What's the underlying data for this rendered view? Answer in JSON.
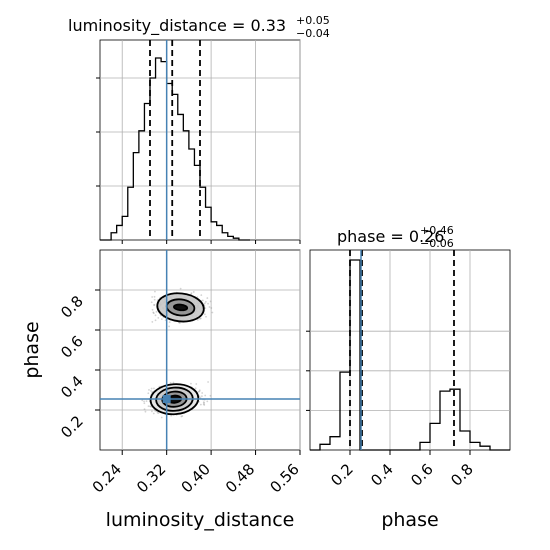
{
  "chart_data": {
    "type": "corner",
    "parameters": [
      "luminosity_distance",
      "phase"
    ],
    "axis_labels": {
      "x1": "luminosity_distance",
      "x2": "phase",
      "y2": "phase"
    },
    "titles": {
      "luminosity_distance": {
        "prefix": "luminosity_distance = 0.33",
        "plus": "+0.05",
        "minus": "−0.04"
      },
      "phase": {
        "prefix": "phase = 0.26",
        "plus": "+0.46",
        "minus": "−0.06"
      }
    },
    "ticks": {
      "luminosity_distance": [
        "0.24",
        "0.32",
        "0.40",
        "0.48",
        "0.56"
      ],
      "phase": [
        "0.2",
        "0.4",
        "0.6",
        "0.8"
      ]
    },
    "ranges": {
      "luminosity_distance": [
        0.2,
        0.56
      ],
      "phase": [
        0.0,
        1.0
      ]
    },
    "truth": {
      "luminosity_distance": 0.32,
      "phase": 0.255,
      "color": "#4682b4"
    },
    "quantiles": {
      "luminosity_distance": [
        0.29,
        0.33,
        0.38
      ],
      "phase": [
        0.2,
        0.26,
        0.72
      ]
    },
    "hist_luminosity_distance": {
      "bin_edges": [
        0.2,
        0.22,
        0.23,
        0.24,
        0.25,
        0.26,
        0.27,
        0.28,
        0.29,
        0.3,
        0.31,
        0.32,
        0.33,
        0.34,
        0.35,
        0.36,
        0.37,
        0.38,
        0.39,
        0.4,
        0.41,
        0.42,
        0.43,
        0.44,
        0.45,
        0.46,
        0.47
      ],
      "heights": [
        0,
        4,
        8,
        13,
        29,
        48,
        60,
        75,
        89,
        100,
        98,
        86,
        80,
        69,
        60,
        50,
        41,
        29,
        18,
        10,
        8,
        4,
        2,
        1,
        0,
        0
      ]
    },
    "hist_phase": {
      "bin_edges": [
        0.0,
        0.05,
        0.1,
        0.15,
        0.2,
        0.25,
        0.3,
        0.35,
        0.4,
        0.45,
        0.5,
        0.55,
        0.6,
        0.65,
        0.7,
        0.75,
        0.8,
        0.85,
        0.9,
        0.95,
        1.0
      ],
      "heights": [
        0,
        3,
        7,
        41,
        100,
        0,
        0,
        0,
        0,
        0,
        0,
        4,
        14,
        31,
        32,
        10,
        4,
        2,
        0,
        0
      ]
    },
    "contours_2d": [
      {
        "cx": 0.334,
        "cy": 0.254,
        "rx": [
          0.012,
          0.022,
          0.033,
          0.043
        ],
        "ry": [
          0.018,
          0.038,
          0.058,
          0.075
        ]
      },
      {
        "cx": 0.345,
        "cy": 0.713,
        "rx": [
          0.012,
          0.025,
          0.042
        ],
        "ry": [
          0.014,
          0.04,
          0.07
        ]
      }
    ],
    "grid": true
  }
}
